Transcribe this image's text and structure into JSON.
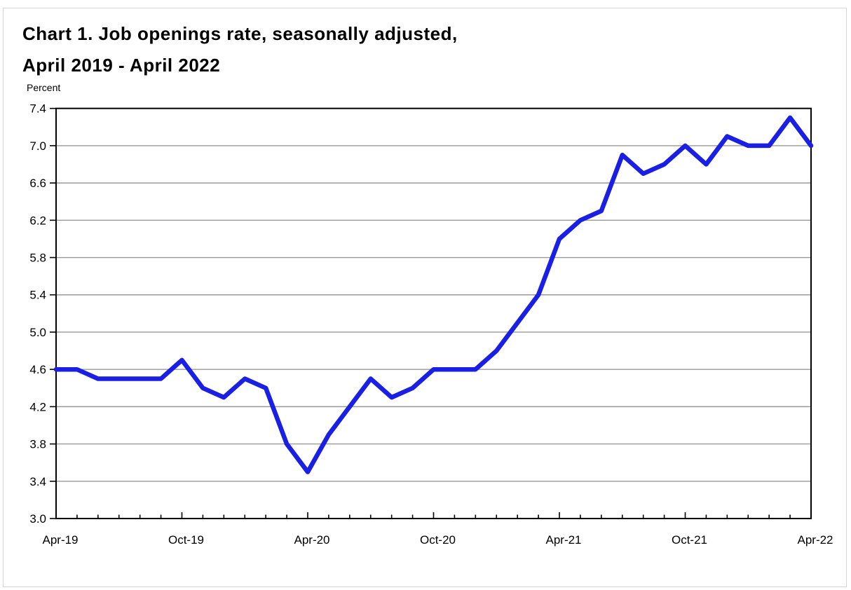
{
  "page": {
    "title_line1": "Chart 1. Job openings rate, seasonally adjusted,",
    "title_line2": "April 2019 - April 2022"
  },
  "chart_data": {
    "type": "line",
    "title": "Chart 1. Job openings rate, seasonally adjusted, April 2019 - April 2022",
    "ylabel": "Percent",
    "series_name": "Job openings rate (percent)",
    "x": [
      "Apr-19",
      "May-19",
      "Jun-19",
      "Jul-19",
      "Aug-19",
      "Sep-19",
      "Oct-19",
      "Nov-19",
      "Dec-19",
      "Jan-20",
      "Feb-20",
      "Mar-20",
      "Apr-20",
      "May-20",
      "Jun-20",
      "Jul-20",
      "Aug-20",
      "Sep-20",
      "Oct-20",
      "Nov-20",
      "Dec-20",
      "Jan-21",
      "Feb-21",
      "Mar-21",
      "Apr-21",
      "May-21",
      "Jun-21",
      "Jul-21",
      "Aug-21",
      "Sep-21",
      "Oct-21",
      "Nov-21",
      "Dec-21",
      "Jan-22",
      "Feb-22",
      "Mar-22",
      "Apr-22"
    ],
    "values": [
      4.6,
      4.6,
      4.5,
      4.5,
      4.5,
      4.5,
      4.7,
      4.4,
      4.3,
      4.5,
      4.4,
      3.8,
      3.5,
      3.9,
      4.2,
      4.5,
      4.3,
      4.4,
      4.6,
      4.6,
      4.6,
      4.8,
      5.1,
      5.4,
      6.0,
      6.2,
      6.3,
      6.9,
      6.7,
      6.8,
      7.0,
      6.8,
      7.1,
      7.0,
      7.0,
      7.3,
      7.0
    ],
    "ylim": [
      3.0,
      7.4
    ],
    "ytick_step": 0.4,
    "ytick_labels": [
      "3.0",
      "3.4",
      "3.8",
      "4.2",
      "4.6",
      "5.0",
      "5.4",
      "5.8",
      "6.2",
      "6.6",
      "7.0",
      "7.4"
    ],
    "xtick_every": 6,
    "xtick_labels": [
      "Apr-19",
      "Oct-19",
      "Apr-20",
      "Oct-20",
      "Apr-21",
      "Oct-21",
      "Apr-22"
    ],
    "grid": true,
    "legend": "none",
    "line_color": "#1a1fe6",
    "grid_color": "#999999",
    "frame_color": "#000000",
    "line_width": 6.5
  }
}
